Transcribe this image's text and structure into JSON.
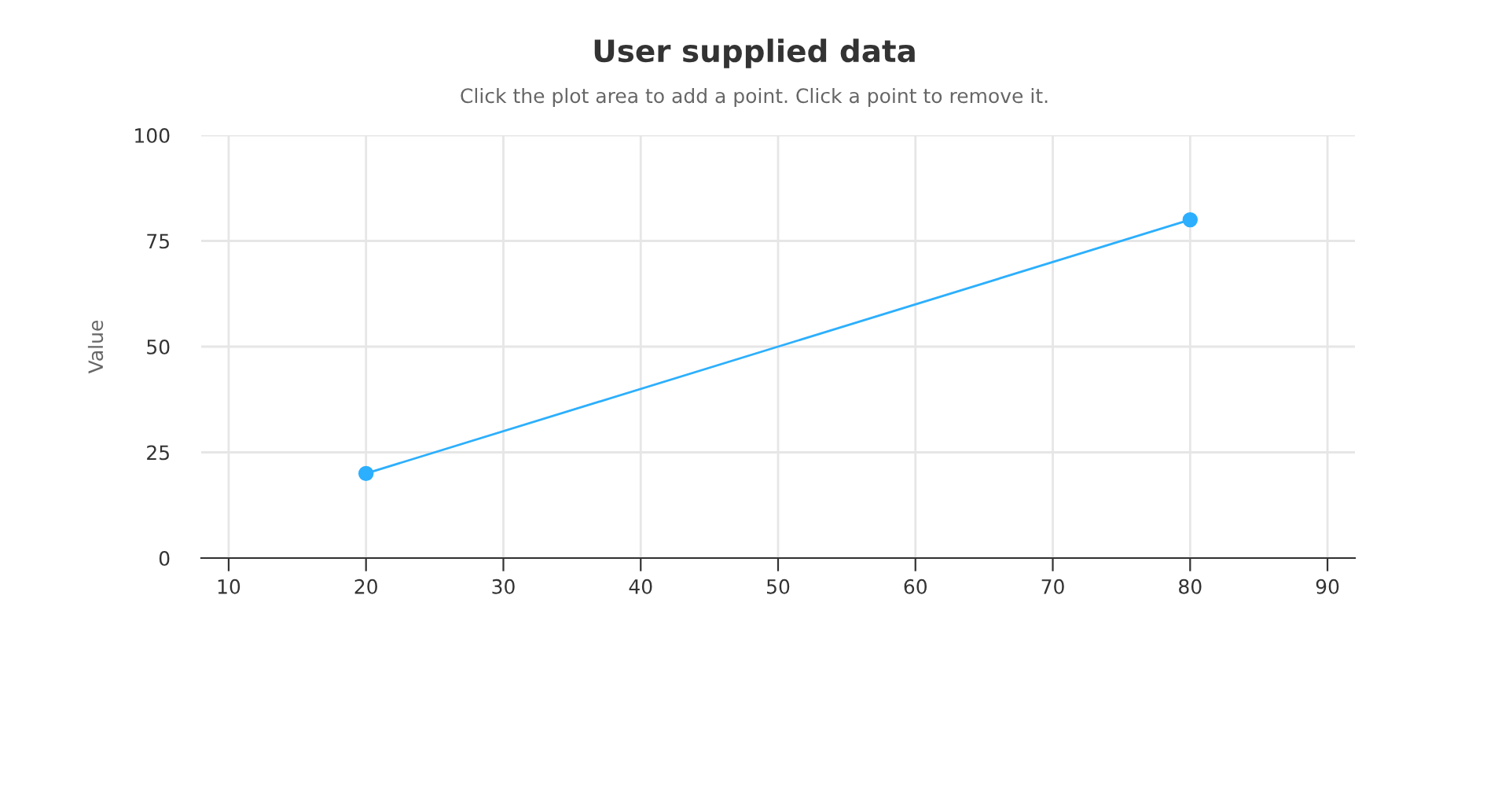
{
  "chart_data": {
    "type": "line",
    "title": "User supplied data",
    "subtitle": "Click the plot area to add a point. Click a point to remove it.",
    "ylabel": "Value",
    "x": [
      20,
      80
    ],
    "series": [
      {
        "color": "#2caffe",
        "values": [
          20,
          80
        ]
      }
    ],
    "xlim": [
      8,
      92
    ],
    "xticks": [
      10,
      20,
      30,
      40,
      50,
      60,
      70,
      80,
      90
    ],
    "ylim": [
      0,
      100
    ],
    "yticks": [
      0,
      25,
      50,
      75,
      100
    ],
    "grid": true,
    "marker": "circle",
    "line_style": "solid"
  }
}
